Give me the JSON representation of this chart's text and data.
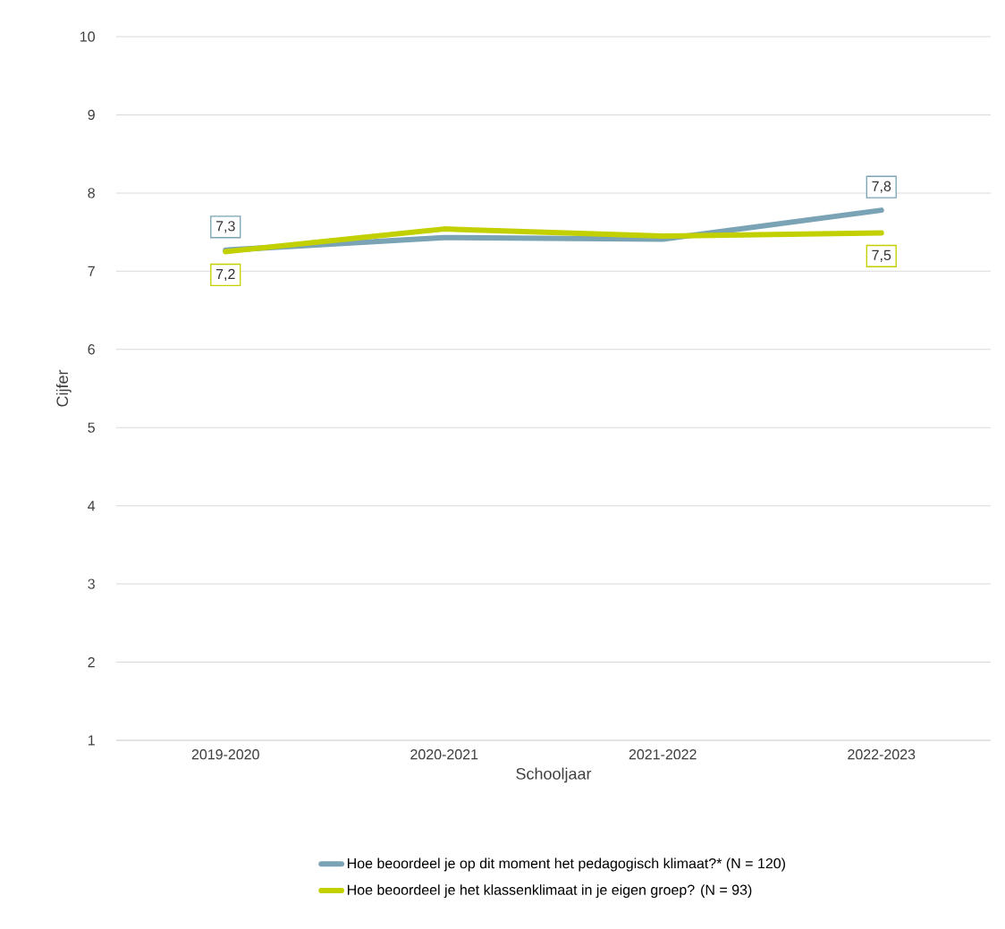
{
  "chart_data": {
    "type": "line",
    "xlabel": "Schooljaar",
    "ylabel": "Cijfer",
    "categories": [
      "2019-2020",
      "2020-2021",
      "2021-2022",
      "2022-2023"
    ],
    "series": [
      {
        "name": "Hoe beoordeel je op dit moment het pedagogisch klimaat?* (N = 120)",
        "color": "#7aa3b5",
        "values": [
          7.27,
          7.43,
          7.41,
          7.78
        ],
        "value_labels": [
          "7,3",
          null,
          null,
          "7,8"
        ]
      },
      {
        "name": "Hoe beoordeel je het klassenklimaat in je eigen groep? (N = 93)",
        "color": "#c3d000",
        "values": [
          7.25,
          7.54,
          7.45,
          7.49
        ],
        "value_labels": [
          "7,2",
          null,
          null,
          "7,5"
        ]
      }
    ],
    "ylim": [
      1,
      10
    ],
    "yticks": [
      1,
      2,
      3,
      4,
      5,
      6,
      7,
      8,
      9,
      10
    ],
    "grid": "y",
    "legend": "bottom",
    "marker": "none",
    "line_style": "solid"
  }
}
